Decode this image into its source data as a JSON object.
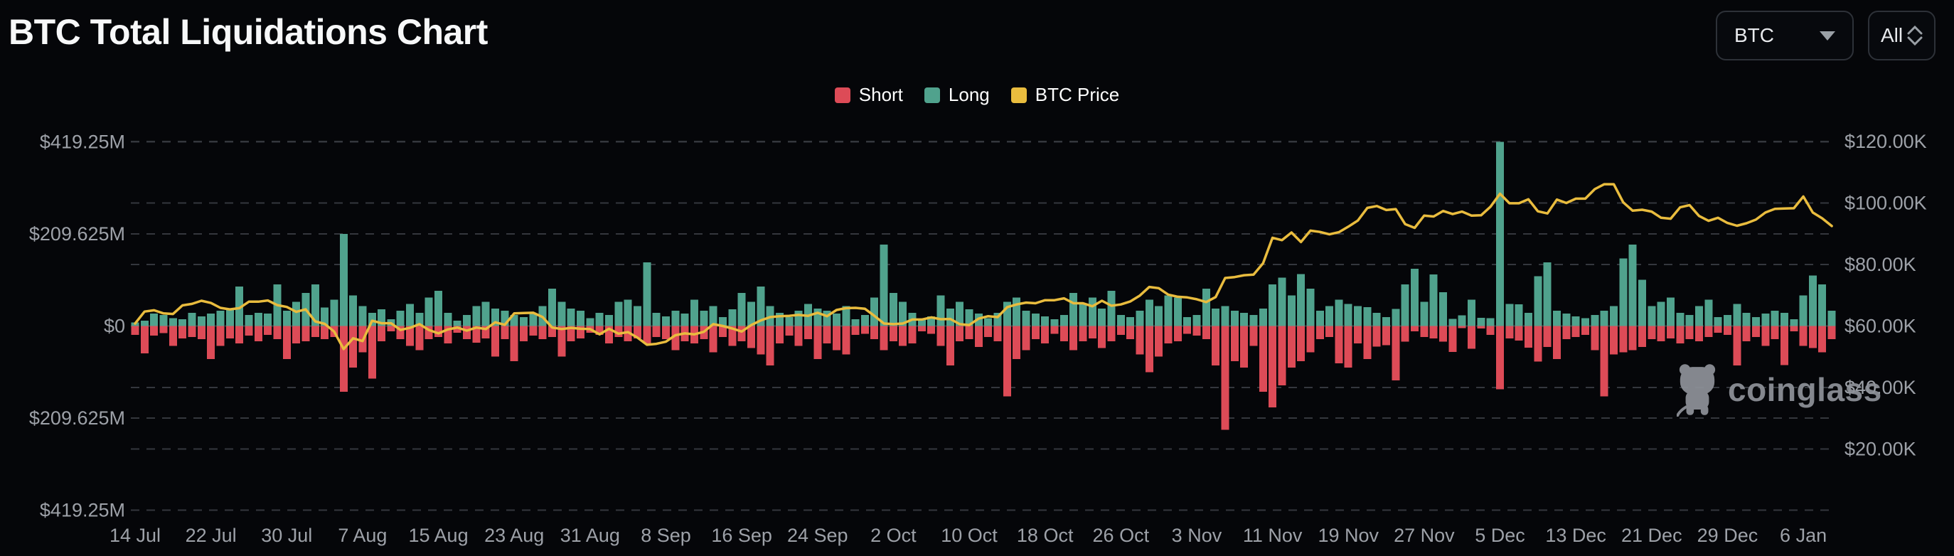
{
  "page": {
    "title": "BTC Total Liquidations Chart",
    "background": "#050609"
  },
  "controls": {
    "symbol_select": {
      "value": "BTC"
    },
    "range_select": {
      "value": "All"
    }
  },
  "legend": [
    {
      "label": "Short",
      "color": "#DD4B57"
    },
    {
      "label": "Long",
      "color": "#50A28D"
    },
    {
      "label": "BTC Price",
      "color": "#E9BC3E"
    }
  ],
  "watermark": {
    "text": "coinglass"
  },
  "chart_data": {
    "type": "bar",
    "title": "BTC Total Liquidations Chart",
    "note": "Daily liquidations: Long bars plotted upward, Short bars plotted downward (values in $M). BTC Price line on right axis ($K).",
    "start_date": "14 Jul",
    "end_date": "9 Jan",
    "x_tick_labels": [
      "14 Jul",
      "22 Jul",
      "30 Jul",
      "7 Aug",
      "15 Aug",
      "23 Aug",
      "31 Aug",
      "8 Sep",
      "16 Sep",
      "24 Sep",
      "2 Oct",
      "10 Oct",
      "18 Oct",
      "26 Oct",
      "3 Nov",
      "11 Nov",
      "19 Nov",
      "27 Nov",
      "5 Dec",
      "13 Dec",
      "21 Dec",
      "29 Dec",
      "6 Jan"
    ],
    "x_tick_interval_days": 8,
    "left_axis": {
      "labels": [
        "$419.25M",
        "$209.625M",
        "$0",
        "$209.625M",
        "$419.25M"
      ],
      "values_m": [
        419.25,
        209.625,
        0,
        -209.625,
        -419.25
      ],
      "unit": "USD millions"
    },
    "right_axis": {
      "labels": [
        "$120.00K",
        "$100.00K",
        "$80.00K",
        "$60.00K",
        "$40.00K",
        "$20.00K"
      ],
      "values_k": [
        120,
        100,
        80,
        60,
        40,
        20
      ],
      "unit": "USD thousands"
    },
    "grid": true,
    "legend_position": "top-center",
    "colors": {
      "short": "#DD4B57",
      "long": "#50A28D",
      "price": "#E9BC3E"
    },
    "series": [
      {
        "name": "Long",
        "direction": "up",
        "unit": "$M",
        "values": [
          8,
          12,
          28,
          25,
          18,
          15,
          30,
          22,
          28,
          35,
          40,
          90,
          25,
          30,
          28,
          95,
          35,
          55,
          75,
          95,
          42,
          60,
          210,
          70,
          45,
          30,
          38,
          15,
          35,
          50,
          30,
          65,
          80,
          30,
          12,
          25,
          45,
          55,
          40,
          35,
          25,
          20,
          28,
          45,
          85,
          55,
          40,
          35,
          18,
          30,
          25,
          55,
          60,
          45,
          145,
          30,
          22,
          35,
          28,
          60,
          35,
          45,
          20,
          38,
          75,
          55,
          90,
          45,
          30,
          20,
          35,
          50,
          40,
          35,
          28,
          45,
          15,
          25,
          65,
          185,
          75,
          55,
          30,
          15,
          22,
          70,
          40,
          55,
          38,
          28,
          18,
          30,
          55,
          65,
          35,
          28,
          22,
          15,
          25,
          75,
          50,
          65,
          40,
          80,
          25,
          20,
          35,
          60,
          45,
          70,
          65,
          20,
          25,
          85,
          40,
          45,
          35,
          30,
          25,
          40,
          95,
          110,
          70,
          118,
          85,
          35,
          45,
          60,
          50,
          45,
          43,
          30,
          20,
          39,
          95,
          130,
          55,
          117,
          77,
          16,
          24,
          60,
          19,
          18,
          419.25,
          50,
          49,
          30,
          113,
          145,
          35,
          28,
          22,
          18,
          25,
          35,
          45,
          154,
          185,
          105,
          45,
          55,
          65,
          30,
          25,
          45,
          60,
          20,
          25,
          50,
          30,
          20,
          28,
          35,
          30,
          15,
          70,
          115,
          95,
          35
        ]
      },
      {
        "name": "Short",
        "direction": "down",
        "unit": "$M",
        "values": [
          20,
          62,
          22,
          16,
          45,
          28,
          25,
          30,
          75,
          45,
          28,
          40,
          22,
          35,
          20,
          30,
          75,
          40,
          35,
          25,
          30,
          25,
          150,
          95,
          60,
          120,
          35,
          12,
          30,
          45,
          55,
          30,
          25,
          40,
          15,
          30,
          38,
          28,
          70,
          30,
          80,
          35,
          22,
          30,
          25,
          70,
          35,
          28,
          15,
          20,
          40,
          25,
          35,
          28,
          40,
          25,
          30,
          55,
          35,
          40,
          30,
          60,
          25,
          45,
          35,
          50,
          65,
          90,
          40,
          22,
          45,
          30,
          75,
          40,
          55,
          65,
          20,
          18,
          30,
          55,
          35,
          45,
          40,
          12,
          18,
          45,
          90,
          35,
          30,
          48,
          25,
          35,
          160,
          75,
          55,
          30,
          40,
          18,
          35,
          55,
          35,
          28,
          50,
          35,
          20,
          30,
          65,
          105,
          70,
          40,
          35,
          18,
          22,
          30,
          90,
          236,
          80,
          95,
          45,
          150,
          185,
          135,
          95,
          80,
          60,
          30,
          25,
          85,
          95,
          40,
          75,
          47,
          44,
          124,
          36,
          12,
          25,
          28,
          36,
          59,
          5,
          52,
          6,
          20,
          144,
          28,
          33,
          49,
          81,
          48,
          75,
          30,
          25,
          20,
          55,
          160,
          65,
          60,
          55,
          48,
          30,
          35,
          28,
          40,
          30,
          35,
          25,
          15,
          20,
          90,
          35,
          25,
          45,
          30,
          89,
          12,
          45,
          50,
          60,
          30
        ]
      },
      {
        "name": "BTC Price",
        "type": "line",
        "unit": "$K",
        "values": [
          60.8,
          64.7,
          65.1,
          64.1,
          63.9,
          66.7,
          67.2,
          68.2,
          67.5,
          65.9,
          65.4,
          65.8,
          67.9,
          67.9,
          68.3,
          66.8,
          66.2,
          64.6,
          65.4,
          61.5,
          60.7,
          58.2,
          52.5,
          56.0,
          55.1,
          61.7,
          60.9,
          60.9,
          58.7,
          59.4,
          60.6,
          58.7,
          57.6,
          58.9,
          59.5,
          58.5,
          59.5,
          59.0,
          61.2,
          60.4,
          64.1,
          64.2,
          64.3,
          62.9,
          59.5,
          59.0,
          59.4,
          59.1,
          59.0,
          57.3,
          59.1,
          57.5,
          58.0,
          56.2,
          53.9,
          54.2,
          54.9,
          57.0,
          57.6,
          57.3,
          58.1,
          60.6,
          60.0,
          59.2,
          58.2,
          60.3,
          61.8,
          62.9,
          63.2,
          63.3,
          63.6,
          63.3,
          64.3,
          63.2,
          65.2,
          65.8,
          65.9,
          65.6,
          63.3,
          60.8,
          60.6,
          60.8,
          62.1,
          62.1,
          62.8,
          62.2,
          62.3,
          60.6,
          60.3,
          62.4,
          63.2,
          62.9,
          66.1,
          67.0,
          67.6,
          67.4,
          68.4,
          68.4,
          69.0,
          67.4,
          67.4,
          66.4,
          68.2,
          66.6,
          67.0,
          68.0,
          69.9,
          72.7,
          72.3,
          70.2,
          69.5,
          69.3,
          68.7,
          67.8,
          69.4,
          75.6,
          75.9,
          76.5,
          76.7,
          80.4,
          88.7,
          87.9,
          90.4,
          87.3,
          91.0,
          90.6,
          89.8,
          90.5,
          92.3,
          94.3,
          98.4,
          99.0,
          97.7,
          98.0,
          93.1,
          91.9,
          95.9,
          95.6,
          97.4,
          96.4,
          97.2,
          95.9,
          96.0,
          98.8,
          103.0,
          99.9,
          99.9,
          101.2,
          97.3,
          96.6,
          101.1,
          100.0,
          101.4,
          101.4,
          104.5,
          106.1,
          106.1,
          100.2,
          97.5,
          97.8,
          97.2,
          95.2,
          94.9,
          98.6,
          99.3,
          95.8,
          94.2,
          95.2,
          93.5,
          92.6,
          93.4,
          94.6,
          96.9,
          98.1,
          98.2,
          98.3,
          102.1,
          96.9,
          95.0,
          92.5
        ]
      }
    ]
  }
}
